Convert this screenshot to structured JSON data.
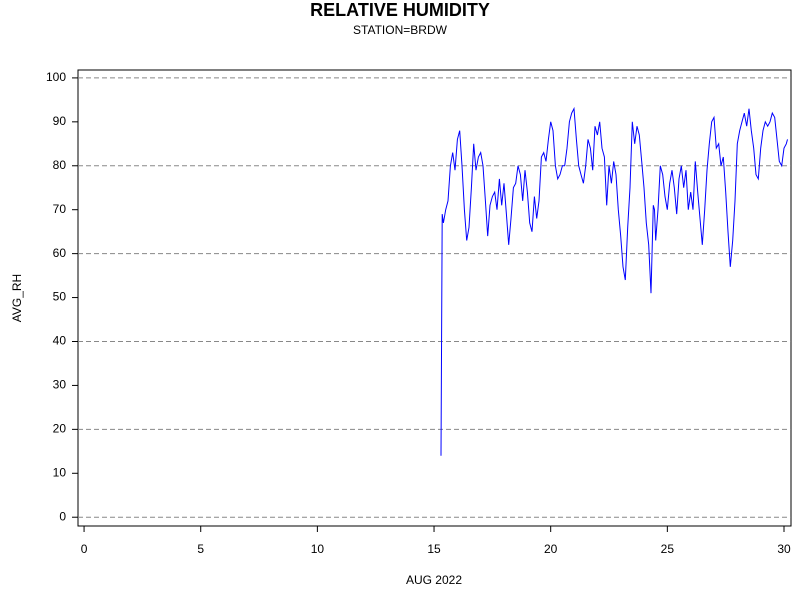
{
  "chart_data": {
    "type": "line",
    "title": "RELATIVE HUMIDITY",
    "subtitle": "STATION=BRDW",
    "xlabel": "AUG 2022",
    "ylabel": "AVG_RH",
    "color": "#0000ff",
    "x": [
      15.3,
      15.35,
      15.4,
      15.5,
      15.6,
      15.7,
      15.8,
      15.9,
      16.0,
      16.1,
      16.2,
      16.3,
      16.4,
      16.5,
      16.6,
      16.7,
      16.8,
      16.9,
      17.0,
      17.1,
      17.2,
      17.3,
      17.4,
      17.5,
      17.6,
      17.7,
      17.8,
      17.9,
      18.0,
      18.1,
      18.2,
      18.3,
      18.4,
      18.5,
      18.6,
      18.7,
      18.8,
      18.9,
      19.0,
      19.1,
      19.2,
      19.3,
      19.4,
      19.5,
      19.6,
      19.7,
      19.8,
      19.9,
      20.0,
      20.1,
      20.2,
      20.3,
      20.4,
      20.5,
      20.6,
      20.7,
      20.8,
      20.9,
      21.0,
      21.1,
      21.2,
      21.3,
      21.4,
      21.5,
      21.6,
      21.7,
      21.8,
      21.9,
      22.0,
      22.1,
      22.2,
      22.3,
      22.4,
      22.5,
      22.6,
      22.7,
      22.8,
      22.9,
      23.0,
      23.1,
      23.2,
      23.3,
      23.4,
      23.5,
      23.6,
      23.7,
      23.8,
      23.9,
      24.0,
      24.1,
      24.2,
      24.3,
      24.4,
      24.45,
      24.5,
      24.6,
      24.7,
      24.8,
      24.9,
      25.0,
      25.1,
      25.2,
      25.3,
      25.4,
      25.5,
      25.6,
      25.7,
      25.8,
      25.9,
      26.0,
      26.1,
      26.2,
      26.3,
      26.4,
      26.5,
      26.6,
      26.7,
      26.8,
      26.9,
      27.0,
      27.1,
      27.2,
      27.3,
      27.4,
      27.5,
      27.6,
      27.7,
      27.8,
      27.9,
      28.0,
      28.1,
      28.2,
      28.3,
      28.4,
      28.5,
      28.6,
      28.7,
      28.8,
      28.9,
      29.0,
      29.1,
      29.2,
      29.3,
      29.4,
      29.5,
      29.6,
      29.7,
      29.8,
      29.9,
      30.0,
      30.1,
      30.15
    ],
    "values": [
      14,
      69,
      67,
      70,
      72,
      80,
      83,
      79,
      86,
      88,
      80,
      70,
      63,
      66,
      75,
      85,
      79,
      82,
      83,
      80,
      72,
      64,
      71,
      73,
      74,
      70,
      77,
      71,
      76,
      69,
      62,
      68,
      75,
      76,
      80,
      78,
      72,
      79,
      74,
      67,
      65,
      73,
      68,
      72,
      82,
      83,
      81,
      86,
      90,
      88,
      80,
      77,
      78,
      80,
      80,
      84,
      90,
      92,
      93,
      86,
      80,
      78,
      76,
      80,
      86,
      84,
      79,
      89,
      87,
      90,
      84,
      82,
      71,
      80,
      76,
      81,
      78,
      70,
      64,
      57,
      54,
      66,
      75,
      90,
      85,
      89,
      87,
      81,
      75,
      67,
      62,
      51,
      71,
      70,
      63,
      70,
      80,
      78,
      73,
      70,
      76,
      79,
      75,
      69,
      77,
      80,
      75,
      79,
      70,
      74,
      70,
      81,
      74,
      68,
      62,
      70,
      79,
      85,
      90,
      91,
      84,
      85,
      80,
      82,
      74,
      65,
      57,
      63,
      72,
      85,
      88,
      90,
      92,
      89,
      93,
      88,
      84,
      78,
      77,
      84,
      88,
      90,
      89,
      90,
      92,
      91,
      86,
      81,
      80,
      84,
      85,
      86
    ],
    "xlim": [
      -0.26,
      30.3
    ],
    "xticks": [
      0,
      5,
      10,
      15,
      20,
      25,
      30
    ],
    "ylim": [
      -2,
      101.8
    ],
    "yticks": [
      0,
      10,
      20,
      30,
      40,
      50,
      60,
      70,
      80,
      90,
      100
    ],
    "ygrid": [
      0,
      20,
      40,
      60,
      80,
      100
    ]
  }
}
